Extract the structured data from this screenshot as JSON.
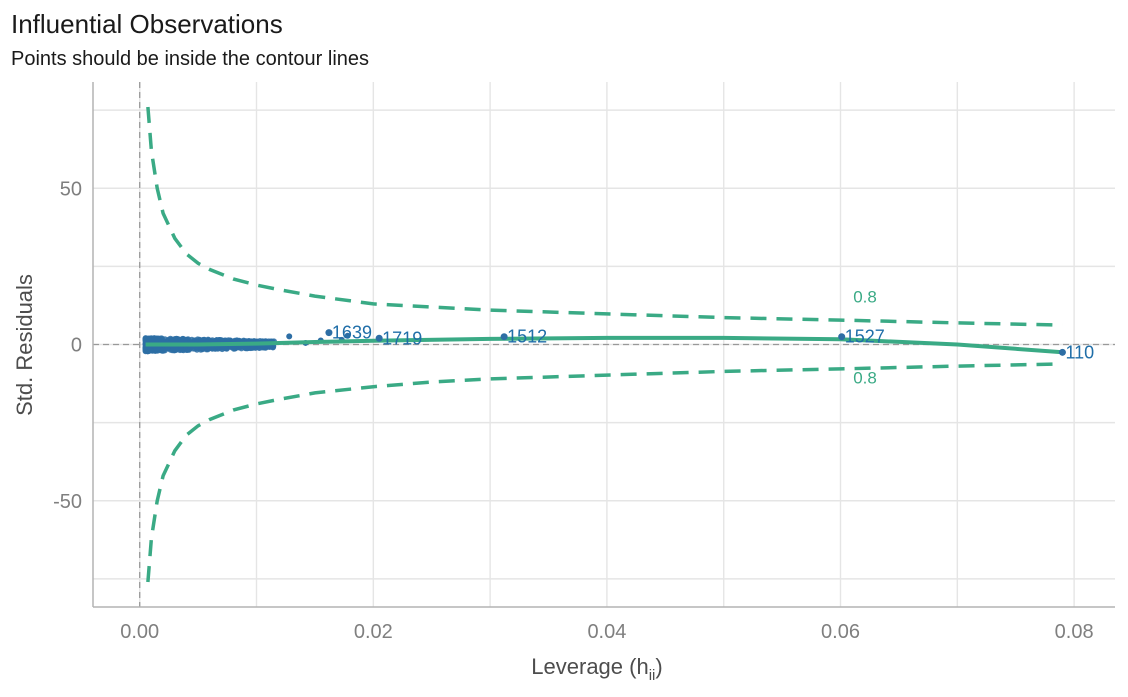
{
  "chart_data": {
    "type": "scatter",
    "title": "Influential Observations",
    "subtitle": "Points should be inside the contour lines",
    "xlabel_main": "Leverage (h",
    "xlabel_sub": "ii",
    "xlabel_close": ")",
    "ylabel": "Std. Residuals",
    "xlim": [
      -0.004,
      0.0835
    ],
    "ylim": [
      -84,
      84
    ],
    "x_ticks": [
      0.0,
      0.02,
      0.04,
      0.06,
      0.08
    ],
    "x_tick_labels": [
      "0.00",
      "0.02",
      "0.04",
      "0.06",
      "0.08"
    ],
    "y_ticks": [
      -50,
      0,
      50
    ],
    "y_tick_labels": [
      "-50",
      "0",
      "50"
    ],
    "contour_level_label": "0.8",
    "contour_label_x": 0.0621,
    "contour_label_y_upper": 13.5,
    "contour_label_y_lower": -12.5,
    "reference_lines": {
      "x": 0.0,
      "y": 0
    },
    "contour_upper": [
      [
        0.0007,
        76
      ],
      [
        0.001,
        62
      ],
      [
        0.0015,
        50
      ],
      [
        0.002,
        42
      ],
      [
        0.003,
        34
      ],
      [
        0.004,
        29
      ],
      [
        0.005,
        26
      ],
      [
        0.006,
        24
      ],
      [
        0.008,
        21
      ],
      [
        0.01,
        19
      ],
      [
        0.012,
        17.5
      ],
      [
        0.015,
        15.5
      ],
      [
        0.02,
        13
      ],
      [
        0.025,
        12
      ],
      [
        0.03,
        11
      ],
      [
        0.04,
        9.8
      ],
      [
        0.05,
        8.6
      ],
      [
        0.06,
        7.8
      ],
      [
        0.07,
        6.9
      ],
      [
        0.079,
        6.2
      ]
    ],
    "contour_lower": [
      [
        0.0007,
        -76
      ],
      [
        0.001,
        -62
      ],
      [
        0.0015,
        -50
      ],
      [
        0.002,
        -42
      ],
      [
        0.003,
        -34
      ],
      [
        0.004,
        -29
      ],
      [
        0.005,
        -26
      ],
      [
        0.006,
        -24
      ],
      [
        0.008,
        -21
      ],
      [
        0.01,
        -19
      ],
      [
        0.012,
        -17.5
      ],
      [
        0.015,
        -15.5
      ],
      [
        0.02,
        -13.5
      ],
      [
        0.025,
        -12
      ],
      [
        0.03,
        -11
      ],
      [
        0.04,
        -9.8
      ],
      [
        0.05,
        -8.6
      ],
      [
        0.06,
        -7.8
      ],
      [
        0.07,
        -6.9
      ],
      [
        0.079,
        -6.2
      ]
    ],
    "smooth_line": [
      [
        0.0005,
        0
      ],
      [
        0.005,
        0
      ],
      [
        0.01,
        0.3
      ],
      [
        0.015,
        0.8
      ],
      [
        0.02,
        1.2
      ],
      [
        0.03,
        1.8
      ],
      [
        0.04,
        2.1
      ],
      [
        0.05,
        2.1
      ],
      [
        0.06,
        1.7
      ],
      [
        0.07,
        0
      ],
      [
        0.079,
        -2.5
      ]
    ],
    "points_cluster": {
      "x_min": 0.0005,
      "x_max": 0.0115,
      "y_min": -2.2,
      "y_max": 2.2
    },
    "highlighted_points": [
      {
        "label": "1639",
        "x": 0.0162,
        "y": 3.8
      },
      {
        "label": "1719",
        "x": 0.0205,
        "y": 2.0
      },
      {
        "label": "1512",
        "x": 0.0312,
        "y": 2.5
      },
      {
        "label": "1527",
        "x": 0.0601,
        "y": 2.5
      },
      {
        "label": "110",
        "x": 0.079,
        "y": -2.5
      }
    ],
    "extra_points": [
      {
        "x": 0.0128,
        "y": 2.6
      },
      {
        "x": 0.0142,
        "y": 0.5
      },
      {
        "x": 0.0155,
        "y": 1.3
      },
      {
        "x": 0.0173,
        "y": 1.5
      },
      {
        "x": 0.0178,
        "y": 2.8
      }
    ],
    "colors": {
      "points": "#2d6ea5",
      "contour": "#3aaa85",
      "smooth": "#3aaa85",
      "grid": "#e5e5e5",
      "reference": "#999999",
      "axis": "#b3b3b3"
    },
    "grid": true
  }
}
